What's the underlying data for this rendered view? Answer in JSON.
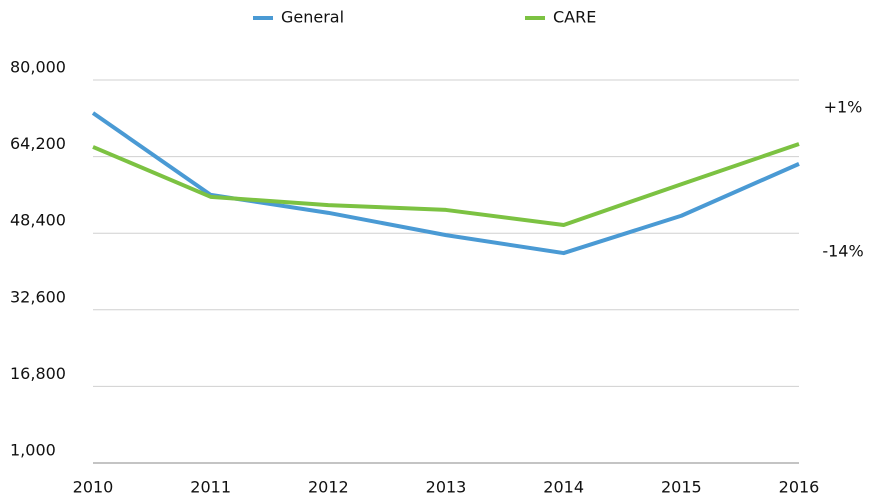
{
  "chart_data": {
    "type": "line",
    "categories": [
      "2010",
      "2011",
      "2012",
      "2013",
      "2014",
      "2015",
      "2016"
    ],
    "series": [
      {
        "name": "General",
        "color": "#4a9ad4",
        "values": [
          73200,
          56300,
          52600,
          48000,
          44300,
          52000,
          62700
        ]
      },
      {
        "name": "CARE",
        "color": "#7cc242",
        "values": [
          66200,
          55900,
          54200,
          53200,
          50100,
          58500,
          66800
        ]
      }
    ],
    "ylim": [
      1000,
      80000
    ],
    "yticks": [
      {
        "value": 1000,
        "label": "1,000"
      },
      {
        "value": 16800,
        "label": "16,800"
      },
      {
        "value": 32600,
        "label": "32,600"
      },
      {
        "value": 48400,
        "label": "48,400"
      },
      {
        "value": 64200,
        "label": "64,200"
      },
      {
        "value": 80000,
        "label": "80,000"
      }
    ],
    "annotations": [
      "+1%",
      "-14%"
    ],
    "grid": true
  }
}
